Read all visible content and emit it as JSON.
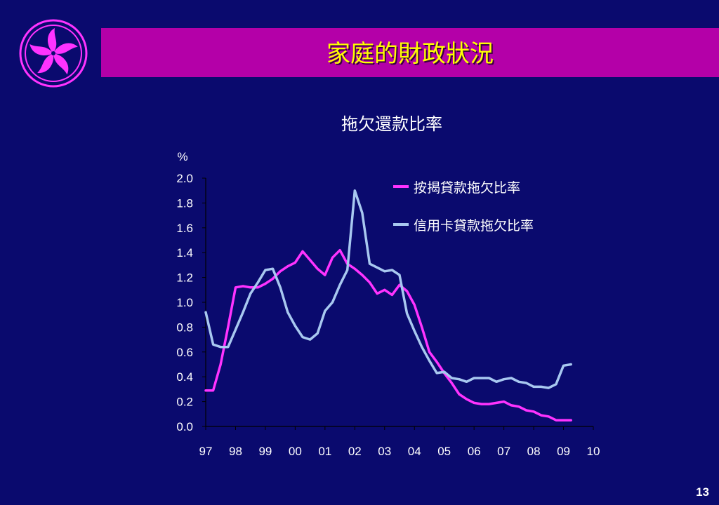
{
  "header": {
    "title": "家庭的財政狀況"
  },
  "footer": {
    "page_number": "13"
  },
  "colors": {
    "background": "#0a0a6e",
    "title_band": "#b400a8",
    "title_text": "#ffff00",
    "mortgage_series": "#ff33ff",
    "credit_card_series": "#a8c8f0"
  },
  "logo": {
    "icon": "bauhinia-flower-icon"
  },
  "chart_data": {
    "type": "line",
    "title": "拖欠還款比率",
    "ylabel": "%",
    "xlabel": "",
    "ylim": [
      0,
      2.0
    ],
    "xlim": [
      1997,
      2010
    ],
    "yticks": [
      "0.0",
      "0.2",
      "0.4",
      "0.6",
      "0.8",
      "1.0",
      "1.2",
      "1.4",
      "1.6",
      "1.8",
      "2.0"
    ],
    "xticks": [
      "97",
      "98",
      "99",
      "00",
      "01",
      "02",
      "03",
      "04",
      "05",
      "06",
      "07",
      "08",
      "09",
      "10"
    ],
    "legend_position": "top-right",
    "grid": false,
    "x": [
      1997.0,
      1997.25,
      1997.5,
      1997.75,
      1998.0,
      1998.25,
      1998.5,
      1998.75,
      1999.0,
      1999.25,
      1999.5,
      1999.75,
      2000.0,
      2000.25,
      2000.5,
      2000.75,
      2001.0,
      2001.25,
      2001.5,
      2001.75,
      2002.0,
      2002.25,
      2002.5,
      2002.75,
      2003.0,
      2003.25,
      2003.5,
      2003.75,
      2004.0,
      2004.25,
      2004.5,
      2004.75,
      2005.0,
      2005.25,
      2005.5,
      2005.75,
      2006.0,
      2006.25,
      2006.5,
      2006.75,
      2007.0,
      2007.25,
      2007.5,
      2007.75,
      2008.0,
      2008.25,
      2008.5,
      2008.75,
      2009.0,
      2009.25
    ],
    "series": [
      {
        "name": "按揭貸款拖欠比率",
        "color": "#ff33ff",
        "values": [
          0.29,
          0.29,
          0.5,
          0.8,
          1.12,
          1.13,
          1.12,
          1.12,
          1.15,
          1.19,
          1.25,
          1.29,
          1.32,
          1.41,
          1.34,
          1.27,
          1.22,
          1.36,
          1.42,
          1.31,
          1.27,
          1.22,
          1.16,
          1.07,
          1.1,
          1.06,
          1.14,
          1.09,
          0.98,
          0.8,
          0.6,
          0.52,
          0.43,
          0.35,
          0.26,
          0.22,
          0.19,
          0.18,
          0.18,
          0.19,
          0.2,
          0.17,
          0.16,
          0.13,
          0.12,
          0.09,
          0.08,
          0.05,
          0.05,
          0.05
        ]
      },
      {
        "name": "信用卡貸款拖欠比率",
        "color": "#a8c8f0",
        "values": [
          0.92,
          0.66,
          0.64,
          0.64,
          0.78,
          0.92,
          1.07,
          1.16,
          1.26,
          1.27,
          1.12,
          0.92,
          0.81,
          0.72,
          0.7,
          0.75,
          0.93,
          1.0,
          1.14,
          1.26,
          1.9,
          1.72,
          1.31,
          1.28,
          1.25,
          1.26,
          1.22,
          0.91,
          0.77,
          0.64,
          0.53,
          0.43,
          0.44,
          0.39,
          0.38,
          0.36,
          0.39,
          0.39,
          0.39,
          0.36,
          0.38,
          0.39,
          0.36,
          0.35,
          0.32,
          0.32,
          0.31,
          0.34,
          0.49,
          0.5
        ]
      }
    ]
  }
}
